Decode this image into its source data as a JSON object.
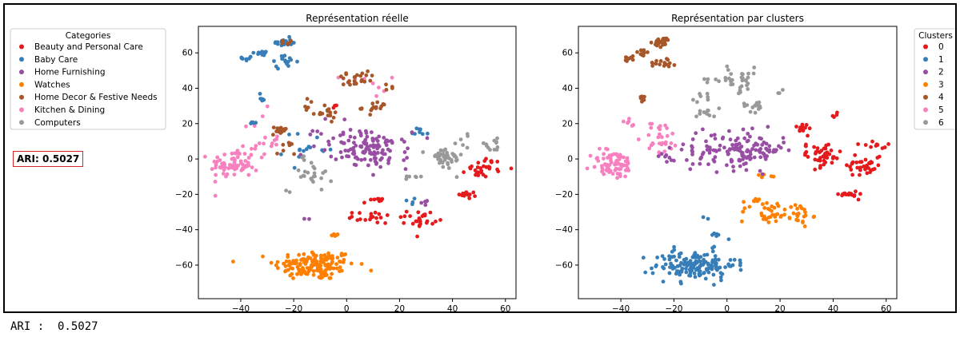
{
  "ari_box_text": "ARI: 0.5027",
  "output_line": "ARI :  0.5027",
  "colors": [
    "#e41a1c",
    "#377eb8",
    "#984ea3",
    "#ff7f00",
    "#a65628",
    "#f781bf",
    "#999999"
  ],
  "chart_data": [
    {
      "type": "scatter",
      "title": "Représentation réelle",
      "xlabel": "",
      "ylabel": "",
      "xlim": [
        -56,
        64
      ],
      "ylim": [
        -79,
        75
      ],
      "xticks": [
        -40,
        -20,
        0,
        20,
        40,
        60
      ],
      "yticks": [
        -60,
        -40,
        -20,
        0,
        20,
        40,
        60
      ],
      "grid": false,
      "legend": {
        "title": "Categories",
        "placement": "outside-left",
        "entries": [
          "Beauty and Personal Care",
          "Baby Care",
          "Home Furnishing",
          "Watches",
          "Home Decor & Festive Needs",
          "Kitchen & Dining",
          "Computers"
        ]
      },
      "groups": [
        {
          "name": "Watches",
          "color_index": 3,
          "clusters": [
            {
              "x": -12,
              "y": -60,
              "sx": 9,
              "sy": 5,
              "n": 150
            },
            {
              "x": -4,
              "y": -43,
              "sx": 1.2,
              "sy": 0.6,
              "n": 5
            }
          ]
        },
        {
          "name": "Kitchen & Dining",
          "color_index": 5,
          "clusters": [
            {
              "x": -43,
              "y": -3,
              "sx": 5,
              "sy": 5,
              "n": 70
            },
            {
              "x": -32,
              "y": 10,
              "sx": 4,
              "sy": 10,
              "n": 20
            },
            {
              "x": 8,
              "y": 42,
              "sx": 6,
              "sy": 4,
              "n": 8
            }
          ]
        },
        {
          "name": "Baby Care",
          "color_index": 1,
          "clusters": [
            {
              "x": -24,
              "y": 66,
              "sx": 2,
              "sy": 1.5,
              "n": 25
            },
            {
              "x": -37,
              "y": 57,
              "sx": 1.5,
              "sy": 1,
              "n": 8
            },
            {
              "x": -32,
              "y": 60,
              "sx": 1.5,
              "sy": 1.5,
              "n": 10
            },
            {
              "x": -24,
              "y": 55,
              "sx": 3,
              "sy": 2,
              "n": 15
            },
            {
              "x": -32,
              "y": 35,
              "sx": 1,
              "sy": 1.5,
              "n": 6
            },
            {
              "x": -35,
              "y": 21,
              "sx": 1,
              "sy": 1.5,
              "n": 5
            },
            {
              "x": -14,
              "y": 5,
              "sx": 6,
              "sy": 6,
              "n": 15
            },
            {
              "x": 28,
              "y": 16,
              "sx": 2,
              "sy": 1.5,
              "n": 8
            },
            {
              "x": 24,
              "y": -24,
              "sx": 1,
              "sy": 1,
              "n": 4
            }
          ]
        },
        {
          "name": "Home Decor & Festive Needs",
          "color_index": 4,
          "clusters": [
            {
              "x": -24,
              "y": 66,
              "sx": 1.5,
              "sy": 1,
              "n": 6
            },
            {
              "x": -25,
              "y": 16,
              "sx": 2,
              "sy": 1.5,
              "n": 15
            },
            {
              "x": -23,
              "y": 5,
              "sx": 2,
              "sy": 3,
              "n": 8
            },
            {
              "x": -8,
              "y": 26,
              "sx": 3,
              "sy": 2,
              "n": 15
            },
            {
              "x": 3,
              "y": 45,
              "sx": 5,
              "sy": 3,
              "n": 25
            },
            {
              "x": 11,
              "y": 29,
              "sx": 3,
              "sy": 2,
              "n": 15
            },
            {
              "x": -14,
              "y": 32,
              "sx": 1.5,
              "sy": 2,
              "n": 5
            },
            {
              "x": 16,
              "y": 39,
              "sx": 1,
              "sy": 1,
              "n": 3
            }
          ]
        },
        {
          "name": "Home Furnishing",
          "color_index": 2,
          "clusters": [
            {
              "x": 10,
              "y": 5,
              "sx": 8,
              "sy": 6,
              "n": 110
            },
            {
              "x": -5,
              "y": 12,
              "sx": 7,
              "sy": 6,
              "n": 20
            },
            {
              "x": 28,
              "y": -24,
              "sx": 2,
              "sy": 2,
              "n": 5
            },
            {
              "x": -15,
              "y": -34,
              "sx": 1,
              "sy": 1,
              "n": 2
            }
          ]
        },
        {
          "name": "Beauty and Personal Care",
          "color_index": 0,
          "clusters": [
            {
              "x": 52,
              "y": -5,
              "sx": 4,
              "sy": 3,
              "n": 30
            },
            {
              "x": 46,
              "y": -20,
              "sx": 2,
              "sy": 1.2,
              "n": 15
            },
            {
              "x": 28,
              "y": -34,
              "sx": 3,
              "sy": 3,
              "n": 25
            },
            {
              "x": 10,
              "y": -33,
              "sx": 5,
              "sy": 2,
              "n": 20
            },
            {
              "x": 10,
              "y": -24,
              "sx": 2,
              "sy": 1,
              "n": 8
            },
            {
              "x": -5,
              "y": 30,
              "sx": 1.5,
              "sy": 1,
              "n": 3
            }
          ]
        },
        {
          "name": "Computers",
          "color_index": 6,
          "clusters": [
            {
              "x": 37,
              "y": 0,
              "sx": 4,
              "sy": 4,
              "n": 40
            },
            {
              "x": 55,
              "y": 8,
              "sx": 3,
              "sy": 2,
              "n": 12
            },
            {
              "x": -14,
              "y": -8,
              "sx": 5,
              "sy": 6,
              "n": 25
            },
            {
              "x": 25,
              "y": -10,
              "sx": 3,
              "sy": 1,
              "n": 6
            },
            {
              "x": 45,
              "y": 10,
              "sx": 2,
              "sy": 3,
              "n": 6
            }
          ]
        }
      ]
    },
    {
      "type": "scatter",
      "title": "Représentation par clusters",
      "xlabel": "",
      "ylabel": "",
      "xlim": [
        -56,
        64
      ],
      "ylim": [
        -79,
        75
      ],
      "xticks": [
        -40,
        -20,
        0,
        20,
        40,
        60
      ],
      "yticks": [
        -60,
        -40,
        -20,
        0,
        20,
        40,
        60
      ],
      "grid": false,
      "legend": {
        "title": "Clusters",
        "placement": "outside-right",
        "entries": [
          "0",
          "1",
          "2",
          "3",
          "4",
          "5",
          "6"
        ]
      },
      "groups": [
        {
          "name": "1",
          "color_index": 1,
          "clusters": [
            {
              "x": -12,
              "y": -60,
              "sx": 9,
              "sy": 5,
              "n": 150
            },
            {
              "x": -4,
              "y": -43,
              "sx": 1.2,
              "sy": 0.6,
              "n": 5
            },
            {
              "x": -7,
              "y": -34,
              "sx": 1,
              "sy": 1,
              "n": 2
            }
          ]
        },
        {
          "name": "3",
          "color_index": 3,
          "clusters": [
            {
              "x": 15,
              "y": -30,
              "sx": 6,
              "sy": 4,
              "n": 30
            },
            {
              "x": 27,
              "y": -32,
              "sx": 3,
              "sy": 4,
              "n": 25
            },
            {
              "x": 11,
              "y": -24,
              "sx": 2,
              "sy": 1,
              "n": 8
            },
            {
              "x": 16,
              "y": -10,
              "sx": 2,
              "sy": 1,
              "n": 5
            }
          ]
        },
        {
          "name": "5",
          "color_index": 5,
          "clusters": [
            {
              "x": -43,
              "y": -3,
              "sx": 5,
              "sy": 5,
              "n": 70
            },
            {
              "x": -25,
              "y": 12,
              "sx": 4,
              "sy": 6,
              "n": 30
            },
            {
              "x": -37,
              "y": 20,
              "sx": 1.5,
              "sy": 2,
              "n": 6
            }
          ]
        },
        {
          "name": "4",
          "color_index": 4,
          "clusters": [
            {
              "x": -24,
              "y": 66,
              "sx": 2,
              "sy": 1.5,
              "n": 25
            },
            {
              "x": -37,
              "y": 57,
              "sx": 1.5,
              "sy": 1,
              "n": 8
            },
            {
              "x": -32,
              "y": 60,
              "sx": 1.5,
              "sy": 1.5,
              "n": 10
            },
            {
              "x": -24,
              "y": 55,
              "sx": 3,
              "sy": 2,
              "n": 15
            },
            {
              "x": -32,
              "y": 35,
              "sx": 1,
              "sy": 1.5,
              "n": 6
            }
          ]
        },
        {
          "name": "6",
          "color_index": 6,
          "clusters": [
            {
              "x": 3,
              "y": 45,
              "sx": 6,
              "sy": 4,
              "n": 35
            },
            {
              "x": 11,
              "y": 30,
              "sx": 3,
              "sy": 2,
              "n": 15
            },
            {
              "x": -8,
              "y": 26,
              "sx": 3,
              "sy": 2,
              "n": 12
            },
            {
              "x": -10,
              "y": 34,
              "sx": 2,
              "sy": 2,
              "n": 6
            },
            {
              "x": 20,
              "y": 39,
              "sx": 1,
              "sy": 1,
              "n": 3
            }
          ]
        },
        {
          "name": "2",
          "color_index": 2,
          "clusters": [
            {
              "x": 8,
              "y": 5,
              "sx": 8,
              "sy": 6,
              "n": 110
            },
            {
              "x": -10,
              "y": 5,
              "sx": 6,
              "sy": 6,
              "n": 30
            },
            {
              "x": -22,
              "y": 0,
              "sx": 2,
              "sy": 3,
              "n": 8
            }
          ]
        },
        {
          "name": "0",
          "color_index": 0,
          "clusters": [
            {
              "x": 35,
              "y": 2,
              "sx": 5,
              "sy": 4,
              "n": 45
            },
            {
              "x": 52,
              "y": -3,
              "sx": 4,
              "sy": 4,
              "n": 35
            },
            {
              "x": 46,
              "y": -20,
              "sx": 2,
              "sy": 1.2,
              "n": 15
            },
            {
              "x": 28,
              "y": 17,
              "sx": 3,
              "sy": 2,
              "n": 12
            },
            {
              "x": 41,
              "y": 24,
              "sx": 1,
              "sy": 1,
              "n": 4
            },
            {
              "x": 55,
              "y": 8,
              "sx": 3,
              "sy": 1.5,
              "n": 10
            }
          ]
        }
      ]
    }
  ]
}
